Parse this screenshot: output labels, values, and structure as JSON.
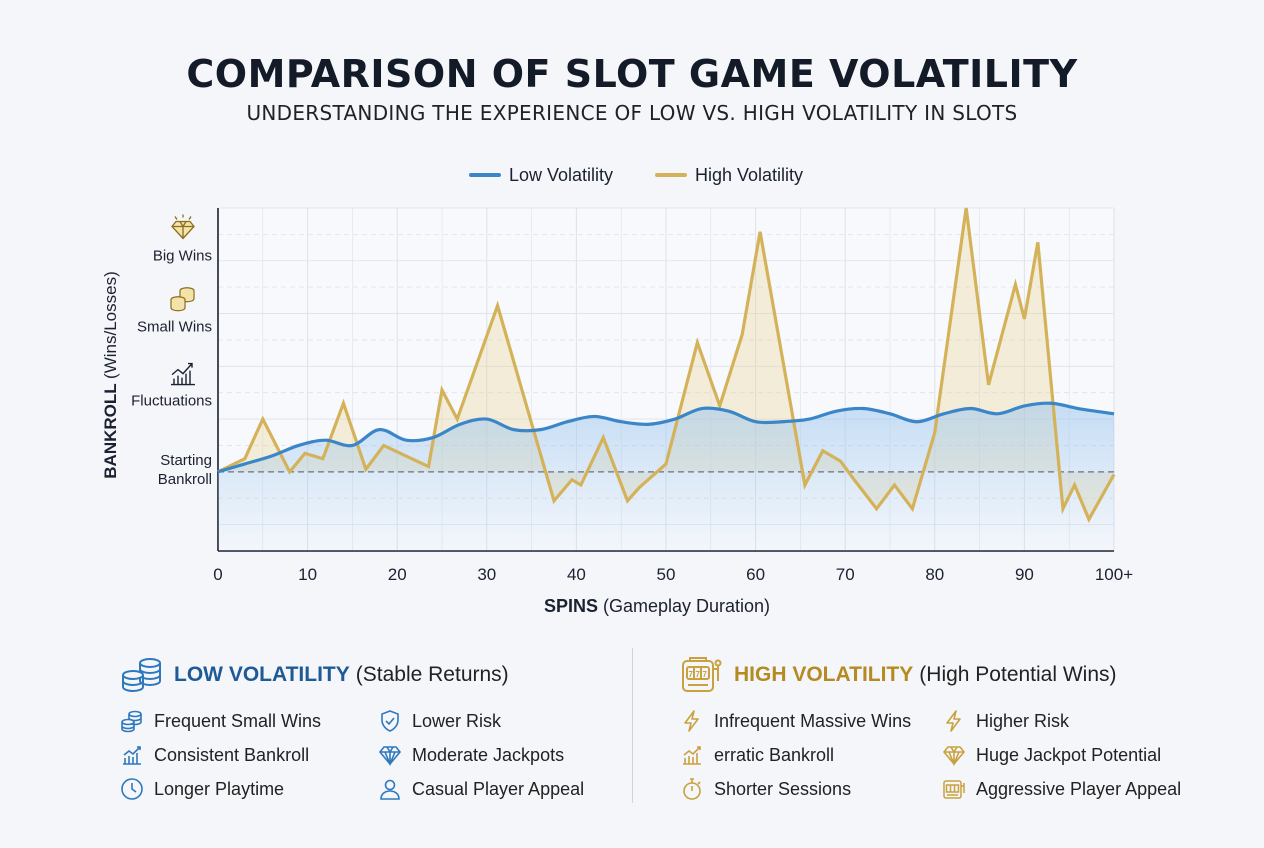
{
  "header": {
    "title": "COMPARISON OF SLOT GAME VOLATILITY",
    "subtitle": "UNDERSTANDING THE EXPERIENCE OF LOW VS. HIGH VOLATILITY IN SLOTS"
  },
  "colors": {
    "low": "#3a86c8",
    "high": "#d4b25a",
    "low_text": "#1e5a96",
    "high_text": "#b58a22"
  },
  "chart_data": {
    "type": "line",
    "legend": {
      "placement": "top-center",
      "entries": [
        "Low Volatility",
        "High Volatility"
      ]
    },
    "xlabel_bold": "SPINS",
    "xlabel_rest": "(Gameplay Duration)",
    "ylabel_bold": "BANKROLL",
    "ylabel_rest": "(Wins/Losses)",
    "x_ticks": [
      "0",
      "10",
      "20",
      "30",
      "40",
      "50",
      "60",
      "70",
      "80",
      "90",
      "100+"
    ],
    "xlim": [
      0,
      100
    ],
    "ylim": [
      -30,
      100
    ],
    "y_levels": [
      {
        "label_lines": [
          "Big Wins"
        ],
        "value": 82,
        "icon": "diamond-icon"
      },
      {
        "label_lines": [
          "Small Wins"
        ],
        "value": 55,
        "icon": "coins-icon"
      },
      {
        "label_lines": [
          "Fluctuations"
        ],
        "value": 27,
        "icon": "rising-chart-icon"
      },
      {
        "label_lines": [
          "Starting",
          "Bankroll"
        ],
        "value": 0,
        "icon": ""
      }
    ],
    "baseline": 0,
    "grid": true,
    "series": [
      {
        "name": "Low Volatility",
        "color": "#3a86c8",
        "x": [
          0,
          3,
          6,
          9,
          12,
          15,
          18,
          21,
          24,
          27,
          30,
          33,
          36,
          39,
          42,
          45,
          48,
          51,
          54,
          57,
          60,
          63,
          66,
          69,
          72,
          75,
          78,
          81,
          84,
          87,
          90,
          93,
          96,
          100
        ],
        "y": [
          0,
          3,
          6,
          10,
          12,
          10,
          16,
          12,
          13,
          18,
          20,
          16,
          16,
          19,
          21,
          19,
          18,
          20,
          24,
          23,
          19,
          19,
          20,
          23,
          24,
          22,
          19,
          22,
          24,
          22,
          25,
          26,
          24,
          22
        ]
      },
      {
        "name": "High Volatility",
        "color": "#d4b25a",
        "x": [
          0,
          3,
          5,
          8,
          9.7,
          11.7,
          14,
          16.5,
          18.5,
          21,
          23.5,
          25,
          26.7,
          31.2,
          37.5,
          39.5,
          40.5,
          43,
          45.7,
          47,
          50,
          53.5,
          56,
          58.5,
          60.5,
          65.5,
          67.5,
          69.5,
          71,
          73.5,
          75.5,
          77.5,
          80,
          83.5,
          86,
          89,
          90,
          91.5,
          94.3,
          95.6,
          97.2,
          100
        ],
        "y": [
          0,
          5,
          20,
          0,
          7,
          5,
          26,
          1,
          10,
          6,
          2,
          31,
          20,
          63,
          -11,
          -3,
          -5,
          13,
          -11,
          -6,
          3,
          49,
          25,
          52,
          91,
          -5,
          8,
          4,
          -3,
          -14,
          -5,
          -14,
          15,
          100,
          33,
          71,
          58,
          87,
          -14,
          -5,
          -18,
          -1
        ]
      }
    ]
  },
  "low_panel": {
    "heading_bold": "LOW VOLATILITY",
    "heading_rest": "(Stable Returns)",
    "items": [
      {
        "label": "Frequent Small Wins",
        "icon": "coin-stack-icon"
      },
      {
        "label": "Lower Risk",
        "icon": "shield-check-icon"
      },
      {
        "label": "Consistent Bankroll",
        "icon": "bar-chart-icon"
      },
      {
        "label": "Moderate Jackpots",
        "icon": "diamond-icon"
      },
      {
        "label": "Longer Playtime",
        "icon": "clock-icon"
      },
      {
        "label": "Casual Player Appeal",
        "icon": "user-icon"
      }
    ]
  },
  "high_panel": {
    "heading_bold": "HIGH VOLATILITY",
    "heading_rest": "(High Potential Wins)",
    "items": [
      {
        "label": "Infrequent Massive Wins",
        "icon": "lightning-icon"
      },
      {
        "label": "Higher Risk",
        "icon": "lightning-icon"
      },
      {
        "label": "erratic Bankroll",
        "icon": "bar-chart-icon"
      },
      {
        "label": "Huge Jackpot Potential",
        "icon": "diamond-icon"
      },
      {
        "label": "Shorter Sessions",
        "icon": "stopwatch-icon"
      },
      {
        "label": "Aggressive Player Appeal",
        "icon": "slot-machine-icon"
      }
    ]
  }
}
